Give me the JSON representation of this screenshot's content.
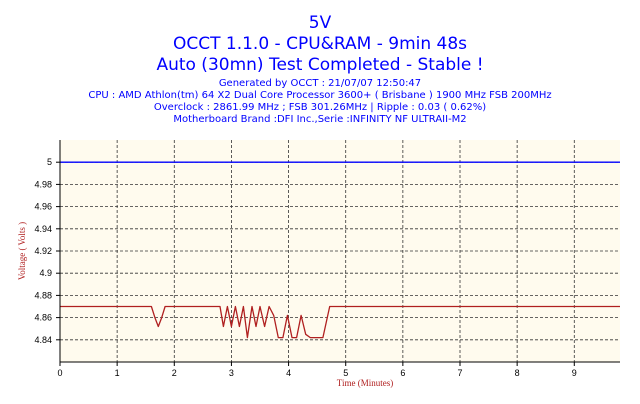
{
  "header": {
    "title_lines": [
      "5V",
      "OCCT 1.1.0 - CPU&RAM - 9min 48s",
      "Auto (30mn) Test Completed - Stable !"
    ],
    "info_lines": [
      "Generated by OCCT : 21/07/07 12:50:47",
      "CPU : AMD Athlon(tm) 64 X2 Dual Core Processor 3600+ ( Brisbane ) 1900 MHz FSB 200MHz",
      "Overclock : 2861.99 MHz ; FSB 301.26MHz | Ripple : 0.03 ( 0.62%)",
      "Motherboard Brand :DFI Inc.,Serie :INFINITY NF ULTRAII-M2"
    ]
  },
  "colors": {
    "title": "#0000ff",
    "plot_background": "#fffbee",
    "grid": "#333333",
    "reference_line": "#0000ff",
    "series": "#b02020",
    "axis": "#000000"
  },
  "chart_data": {
    "type": "line",
    "xlabel": "Time (Minutes)",
    "ylabel": "Voltage ( Volts )",
    "xlim": [
      0,
      9.8
    ],
    "ylim": [
      4.82,
      5.02
    ],
    "x_ticks": [
      0,
      1,
      2,
      3,
      4,
      5,
      6,
      7,
      8,
      9
    ],
    "x_tick_labels": [
      "0",
      "1",
      "2",
      "3",
      "4",
      "5",
      "6",
      "7",
      "8",
      "9"
    ],
    "y_ticks": [
      4.84,
      4.86,
      4.88,
      4.9,
      4.92,
      4.94,
      4.96,
      4.98,
      5.0
    ],
    "y_tick_labels": [
      "4.84",
      "4.86",
      "4.88",
      "4.9",
      "4.92",
      "4.94",
      "4.96",
      "4.98",
      "5"
    ],
    "grid": true,
    "reference_lines": [
      {
        "y": 5.0
      }
    ],
    "series": [
      {
        "x": [
          0,
          1.6,
          1.66,
          1.72,
          1.78,
          1.84,
          2.8,
          2.86,
          2.93,
          3.0,
          3.07,
          3.14,
          3.21,
          3.28,
          3.36,
          3.43,
          3.5,
          3.58,
          3.66,
          3.74,
          3.82,
          3.9,
          3.98,
          4.06,
          4.14,
          4.22,
          4.3,
          4.38,
          4.48,
          4.6,
          4.72,
          9.8
        ],
        "y": [
          4.87,
          4.87,
          4.86,
          4.852,
          4.86,
          4.87,
          4.87,
          4.852,
          4.87,
          4.852,
          4.87,
          4.852,
          4.87,
          4.842,
          4.87,
          4.852,
          4.87,
          4.852,
          4.87,
          4.862,
          4.842,
          4.842,
          4.862,
          4.842,
          4.842,
          4.862,
          4.845,
          4.842,
          4.842,
          4.842,
          4.87,
          4.87
        ]
      }
    ]
  }
}
